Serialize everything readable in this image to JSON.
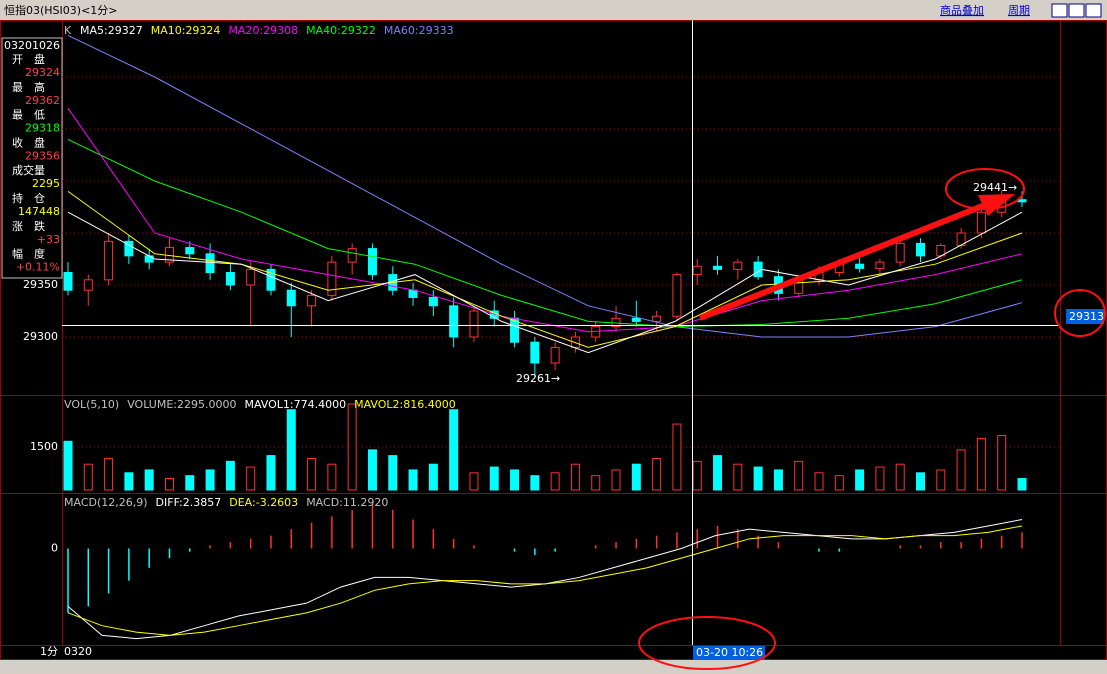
{
  "header": {
    "title": "恒指03(HSI03)<1分>",
    "menu": [
      "商品叠加",
      "周期"
    ]
  },
  "price_panel": {
    "label": "K",
    "ma_labels": [
      {
        "text": "MA5:29327",
        "color": "#ffffff"
      },
      {
        "text": "MA10:29324",
        "color": "#ffff00"
      },
      {
        "text": "MA20:29308",
        "color": "#ff00ff"
      },
      {
        "text": "MA40:29322",
        "color": "#00ff00"
      },
      {
        "text": "MA60:29333",
        "color": "#8080ff"
      }
    ],
    "yticks": [
      29300,
      29350
    ],
    "grid_levels": [
      29300,
      29350,
      29400,
      29450,
      29500,
      29550
    ],
    "candles": [
      [
        29362,
        29372,
        29340,
        29345
      ],
      [
        29345,
        29360,
        29330,
        29355
      ],
      [
        29355,
        29400,
        29350,
        29392
      ],
      [
        29392,
        29398,
        29370,
        29378
      ],
      [
        29378,
        29385,
        29365,
        29372
      ],
      [
        29372,
        29395,
        29368,
        29386
      ],
      [
        29386,
        29392,
        29375,
        29380
      ],
      [
        29380,
        29390,
        29355,
        29362
      ],
      [
        29362,
        29370,
        29345,
        29350
      ],
      [
        29350,
        29372,
        29310,
        29365
      ],
      [
        29365,
        29370,
        29340,
        29345
      ],
      [
        29345,
        29352,
        29300,
        29330
      ],
      [
        29330,
        29345,
        29310,
        29340
      ],
      [
        29340,
        29378,
        29335,
        29372
      ],
      [
        29372,
        29390,
        29360,
        29385
      ],
      [
        29385,
        29390,
        29355,
        29360
      ],
      [
        29360,
        29368,
        29340,
        29345
      ],
      [
        29345,
        29352,
        29330,
        29338
      ],
      [
        29338,
        29345,
        29320,
        29330
      ],
      [
        29330,
        29338,
        29290,
        29300
      ],
      [
        29300,
        29330,
        29295,
        29325
      ],
      [
        29325,
        29335,
        29310,
        29318
      ],
      [
        29318,
        29325,
        29290,
        29295
      ],
      [
        29295,
        29300,
        29261,
        29275
      ],
      [
        29275,
        29295,
        29268,
        29290
      ],
      [
        29290,
        29305,
        29285,
        29300
      ],
      [
        29300,
        29315,
        29295,
        29310
      ],
      [
        29310,
        29330,
        29305,
        29318
      ],
      [
        29318,
        29335,
        29310,
        29315
      ],
      [
        29315,
        29325,
        29305,
        29320
      ],
      [
        29320,
        29362,
        29315,
        29360
      ],
      [
        29360,
        29375,
        29350,
        29368
      ],
      [
        29368,
        29378,
        29360,
        29365
      ],
      [
        29365,
        29375,
        29355,
        29372
      ],
      [
        29372,
        29378,
        29355,
        29358
      ],
      [
        29358,
        29365,
        29335,
        29342
      ],
      [
        29342,
        29360,
        29338,
        29355
      ],
      [
        29355,
        29368,
        29350,
        29362
      ],
      [
        29362,
        29375,
        29358,
        29370
      ],
      [
        29370,
        29378,
        29362,
        29366
      ],
      [
        29366,
        29375,
        29360,
        29372
      ],
      [
        29372,
        29395,
        29368,
        29390
      ],
      [
        29390,
        29395,
        29372,
        29378
      ],
      [
        29378,
        29390,
        29375,
        29388
      ],
      [
        29388,
        29405,
        29385,
        29400
      ],
      [
        29400,
        29425,
        29395,
        29420
      ],
      [
        29420,
        29441,
        29415,
        29432
      ],
      [
        29432,
        29440,
        29425,
        29430
      ]
    ],
    "ma_lines": [
      {
        "color": "#8080ff",
        "values": [
          29590,
          29550,
          29505,
          29460,
          29415,
          29370,
          29330,
          29310,
          29300,
          29300,
          29310,
          29333
        ]
      },
      {
        "color": "#00ff00",
        "values": [
          29490,
          29450,
          29420,
          29385,
          29370,
          29340,
          29315,
          29310,
          29312,
          29318,
          29332,
          29355
        ]
      },
      {
        "color": "#ff00ff",
        "values": [
          29520,
          29400,
          29375,
          29360,
          29345,
          29320,
          29305,
          29310,
          29335,
          29345,
          29360,
          29380
        ]
      },
      {
        "color": "#ffff00",
        "values": [
          29440,
          29380,
          29370,
          29345,
          29355,
          29320,
          29290,
          29310,
          29350,
          29355,
          29370,
          29400
        ]
      },
      {
        "color": "#ffffff",
        "values": [
          29420,
          29375,
          29370,
          29335,
          29360,
          29315,
          29285,
          29315,
          29365,
          29350,
          29375,
          29420
        ]
      }
    ],
    "low_label": "29261→",
    "high_label": "29441→",
    "cursor_price": "29313"
  },
  "info_panel": {
    "time": "03201026",
    "rows": [
      {
        "label": "开　盘",
        "value": "29324",
        "color": "#ff4040"
      },
      {
        "label": "最　高",
        "value": "29362",
        "color": "#ff4040"
      },
      {
        "label": "最　低",
        "value": "29318",
        "color": "#00ff00"
      },
      {
        "label": "收　盘",
        "value": "29356",
        "color": "#ff4040"
      },
      {
        "label": "成交量",
        "value": "2295",
        "color": "#ffff00"
      },
      {
        "label": "持　仓",
        "value": "147448",
        "color": "#ffff00"
      },
      {
        "label": "涨　跌",
        "value": "+33",
        "color": "#ff4040"
      },
      {
        "label": "幅　度",
        "value": "+0.11%",
        "color": "#ff4040"
      }
    ]
  },
  "volume_panel": {
    "labels": [
      {
        "text": "VOL(5,10)",
        "color": "#c0c0c0"
      },
      {
        "text": "VOLUME:2295.0000",
        "color": "#c0c0c0"
      },
      {
        "text": "MAVOL1:774.4000",
        "color": "#ffffff"
      },
      {
        "text": "MAVOL2:816.4000",
        "color": "#ffff00"
      }
    ],
    "yticks": [
      1500
    ],
    "values": [
      1700,
      900,
      1100,
      600,
      700,
      400,
      500,
      700,
      1000,
      800,
      1200,
      2800,
      1100,
      900,
      3000,
      1400,
      1200,
      700,
      900,
      2800,
      600,
      800,
      700,
      500,
      600,
      900,
      500,
      700,
      900,
      1100,
      2300,
      1000,
      1200,
      900,
      800,
      700,
      1000,
      600,
      500,
      700,
      800,
      900,
      600,
      700,
      1400,
      1800,
      1900,
      400
    ]
  },
  "macd_panel": {
    "labels": [
      {
        "text": "MACD(12,26,9)",
        "color": "#c0c0c0"
      },
      {
        "text": "DIFF:2.3857",
        "color": "#ffffff"
      },
      {
        "text": "DEA:-3.2603",
        "color": "#ffff00"
      },
      {
        "text": "MACD:11.2920",
        "color": "#c0c0c0"
      }
    ],
    "yticks": [
      0
    ],
    "ylim": [
      -30,
      16
    ],
    "hist": [
      -20,
      -18,
      -14,
      -10,
      -6,
      -3,
      -1,
      1,
      2,
      3,
      4,
      6,
      8,
      10,
      12,
      14,
      12,
      9,
      6,
      3,
      1,
      0,
      -1,
      -2,
      -1,
      0,
      1,
      2,
      3,
      4,
      5,
      6,
      7,
      6,
      4,
      2,
      0,
      -1,
      -1,
      0,
      0,
      1,
      1,
      2,
      2,
      3,
      4,
      5
    ],
    "dif": [
      -18,
      -27,
      -28,
      -27,
      -24,
      -21,
      -19,
      -17,
      -12,
      -9,
      -9,
      -10,
      -11,
      -12,
      -11,
      -9,
      -6,
      -3,
      0,
      4,
      6,
      5,
      4,
      3,
      3,
      4,
      5,
      7,
      9
    ],
    "dea": [
      -20,
      -24,
      -26,
      -27,
      -26,
      -24,
      -22,
      -20,
      -17,
      -13,
      -11,
      -10,
      -10,
      -11,
      -11,
      -10,
      -8,
      -6,
      -3,
      0,
      3,
      4,
      4,
      4,
      3,
      4,
      4,
      5,
      7
    ]
  },
  "footer": {
    "period": "1分",
    "date": "0320",
    "cursor_time": "03-20 10:26"
  }
}
